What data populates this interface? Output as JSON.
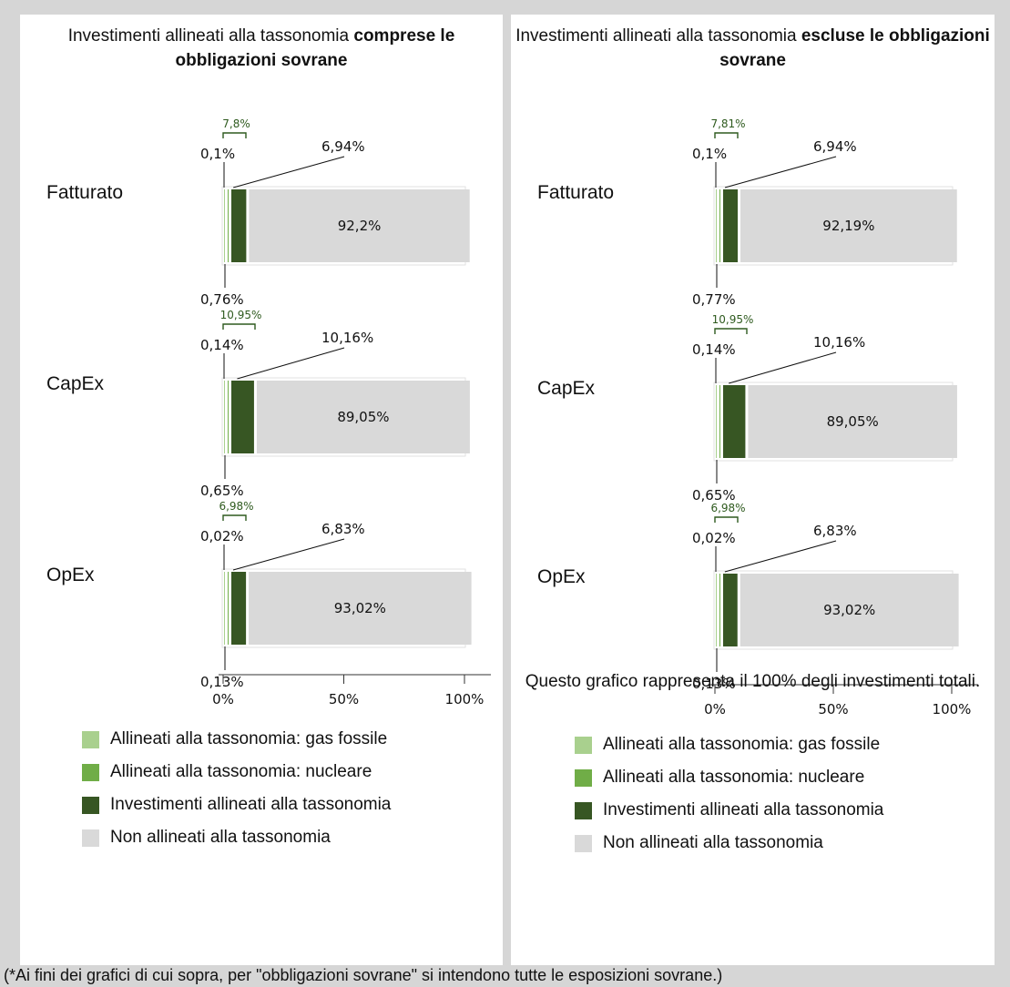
{
  "colors": {
    "gas": "#a9d08e",
    "nuclear": "#70ad47",
    "aligned": "#375623",
    "non_aligned": "#d9d9d9",
    "sum_label": "#2e5a1e"
  },
  "footnote": "(*Ai fini dei grafici di cui sopra, per \"obbligazioni sovrane\" si intendono tutte le esposizioni sovrane.)",
  "panels": [
    {
      "title_prefix": "Investimenti allineati alla tassonomia ",
      "title_bold": "compres​e le obbligazioni sovrane",
      "note": ""
    },
    {
      "title_prefix": "Investimenti allineati alla tassonomia ",
      "title_bold": "escluse le obbligazioni sovrane",
      "note": "Questo grafico rappresenta il 100% degli investimenti totali."
    }
  ],
  "legend": [
    {
      "label": "Allineati alla tassonomia: gas fossile",
      "color": "#a9d08e"
    },
    {
      "label": "Allineati alla tassonomia: nucleare",
      "color": "#70ad47"
    },
    {
      "label": "Investimenti allineati alla tassonomia",
      "color": "#375623"
    },
    {
      "label": "Non allineati alla tassonomia",
      "color": "#d9d9d9"
    }
  ],
  "chart_data": [
    {
      "type": "bar",
      "orientation": "horizontal",
      "stacked": true,
      "title": "Investimenti allineati alla tassonomia compres​e le obbligazioni sovrane",
      "categories": [
        "Fatturato",
        "CapEx",
        "OpEx"
      ],
      "series": [
        {
          "name": "Allineati alla tassonomia: gas fossile",
          "values": [
            0.1,
            0.14,
            0.02
          ],
          "labels": [
            "0,1%",
            "0,14%",
            "0,02%"
          ]
        },
        {
          "name": "Allineati alla tassonomia: nucleare",
          "values": [
            0.76,
            0.65,
            0.13
          ],
          "labels": [
            "0,76%",
            "0,65%",
            "0,13%"
          ]
        },
        {
          "name": "Investimenti allineati alla tassonomia",
          "values": [
            6.94,
            10.16,
            6.83
          ],
          "labels": [
            "6,94%",
            "10,16%",
            "6,83%"
          ]
        },
        {
          "name": "Non allineati alla tassonomia",
          "values": [
            92.2,
            89.05,
            93.02
          ],
          "labels": [
            "92,2%",
            "89,05%",
            "93,02%"
          ]
        }
      ],
      "totals_aligned": [
        "7,8%",
        "10,95%",
        "6,98%"
      ],
      "xlim": [
        0,
        100
      ],
      "xticks": [
        "0%",
        "50%",
        "100%"
      ]
    },
    {
      "type": "bar",
      "orientation": "horizontal",
      "stacked": true,
      "title": "Investimenti allineati alla tassonomia escluse le obbligazioni sovrane",
      "categories": [
        "Fatturato",
        "CapEx",
        "OpEx"
      ],
      "series": [
        {
          "name": "Allineati alla tassonomia: gas fossile",
          "values": [
            0.1,
            0.14,
            0.02
          ],
          "labels": [
            "0,1%",
            "0,14%",
            "0,02%"
          ]
        },
        {
          "name": "Allineati alla tassonomia: nucleare",
          "values": [
            0.77,
            0.65,
            0.13
          ],
          "labels": [
            "0,77%",
            "0,65%",
            "0,13%"
          ]
        },
        {
          "name": "Investimenti allineati alla tassonomia",
          "values": [
            6.94,
            10.16,
            6.83
          ],
          "labels": [
            "6,94%",
            "10,16%",
            "6,83%"
          ]
        },
        {
          "name": "Non allineati alla tassonomia",
          "values": [
            92.19,
            89.05,
            93.02
          ],
          "labels": [
            "92,19%",
            "89,05%",
            "93,02%"
          ]
        }
      ],
      "totals_aligned": [
        "7,81%",
        "10,95%",
        "6,98%"
      ],
      "xlim": [
        0,
        100
      ],
      "xticks": [
        "0%",
        "50%",
        "100%"
      ]
    }
  ]
}
